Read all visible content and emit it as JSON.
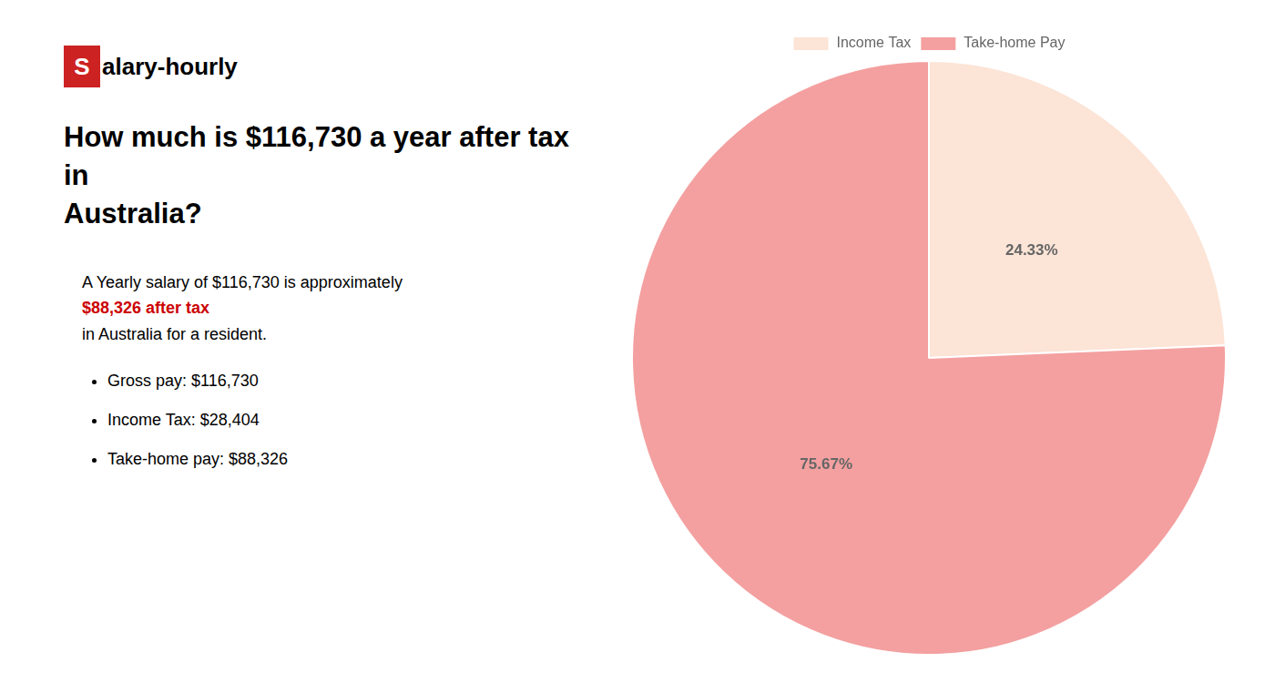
{
  "chart_data": {
    "type": "pie",
    "title": "How much is $116,730 a year after tax in\nAustralia?",
    "logo": [
      "S",
      "alary-hourly"
    ],
    "logo_color": "#cc2222",
    "logo_text_color": "#ffffff",
    "description": [
      {
        "text": "A Yearly salary of $116,730 is approximately "
      },
      {
        "text": "$88,326 after tax",
        "color": "#cc0000"
      },
      {
        "text": "in Australia for a resident."
      }
    ],
    "bullets": [
      "Gross pay: $116,730",
      "Income Tax: $28,404",
      "Take-home pay: $88,326"
    ],
    "categories": [
      "Income Tax",
      "Take-home Pay"
    ],
    "values": [
      24.33,
      75.67
    ],
    "value_labels": [
      "24.33%",
      "75.67%"
    ],
    "colors": [
      "#fce4d6",
      "#f4a0a0"
    ],
    "data_labels": true,
    "legend": "top"
  }
}
